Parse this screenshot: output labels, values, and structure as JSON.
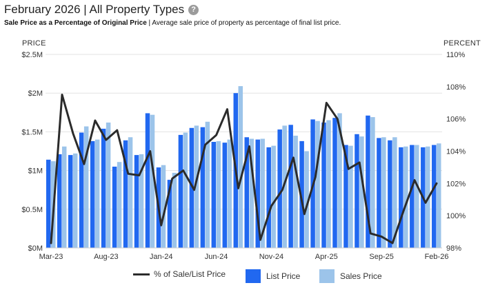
{
  "header": {
    "title": "February 2026 | All Property Types",
    "help_icon": "?",
    "subtitle_bold": "Sale Price as a Percentage of Original Price",
    "subtitle_rest": " | Average sale price of property as percentage of final list price."
  },
  "axes": {
    "left_title": "PRICE",
    "right_title": "PERCENT"
  },
  "legend": {
    "line_label": "% of Sale/List Price",
    "list_label": "List Price",
    "sales_label": "Sales Price"
  },
  "colors": {
    "list": "#2168f0",
    "sales": "#9cc4ea",
    "line": "#2b2b2b",
    "grid": "#e3e3e3"
  },
  "chart_data": {
    "type": "bar",
    "left_axis": {
      "ylim": [
        0,
        2.5
      ],
      "ticks": [
        "$0M",
        "$0.5M",
        "$1M",
        "$1.5M",
        "$2M",
        "$2.5M"
      ]
    },
    "right_axis": {
      "ylim": [
        98,
        110
      ],
      "ticks": [
        "98%",
        "100%",
        "102%",
        "104%",
        "106%",
        "108%",
        "110%"
      ]
    },
    "x_tick_labels": [
      {
        "index": 0,
        "label": "Mar-23"
      },
      {
        "index": 5,
        "label": "Aug-23"
      },
      {
        "index": 10,
        "label": "Jan-24"
      },
      {
        "index": 15,
        "label": "Jun-24"
      },
      {
        "index": 20,
        "label": "Nov-24"
      },
      {
        "index": 25,
        "label": "Apr-25"
      },
      {
        "index": 30,
        "label": "Sep-25"
      },
      {
        "index": 35,
        "label": "Feb-26"
      }
    ],
    "categories": [
      "Mar-23",
      "Apr-23",
      "May-23",
      "Jun-23",
      "Jul-23",
      "Aug-23",
      "Sep-23",
      "Oct-23",
      "Nov-23",
      "Dec-23",
      "Jan-24",
      "Feb-24",
      "Mar-24",
      "Apr-24",
      "May-24",
      "Jun-24",
      "Jul-24",
      "Aug-24",
      "Sep-24",
      "Oct-24",
      "Nov-24",
      "Dec-24",
      "Jan-25",
      "Feb-25",
      "Mar-25",
      "Apr-25",
      "May-25",
      "Jun-25",
      "Jul-25",
      "Aug-25",
      "Sep-25",
      "Oct-25",
      "Nov-25",
      "Dec-25",
      "Jan-26",
      "Feb-26"
    ],
    "series": [
      {
        "name": "List Price",
        "kind": "bar",
        "values": [
          1.14,
          1.21,
          1.2,
          1.49,
          1.38,
          1.54,
          1.05,
          1.39,
          1.2,
          1.74,
          1.04,
          0.88,
          1.46,
          1.55,
          1.56,
          1.37,
          1.36,
          2.0,
          1.43,
          1.4,
          1.3,
          1.53,
          1.59,
          1.38,
          1.66,
          1.62,
          1.68,
          1.33,
          1.47,
          1.71,
          1.42,
          1.39,
          1.3,
          1.33,
          1.3,
          1.33
        ]
      },
      {
        "name": "Sales Price",
        "kind": "bar",
        "values": [
          1.12,
          1.31,
          1.22,
          1.57,
          1.4,
          1.62,
          1.11,
          1.43,
          1.21,
          1.72,
          1.07,
          0.97,
          1.49,
          1.58,
          1.63,
          1.38,
          1.4,
          2.09,
          1.41,
          1.41,
          1.32,
          1.58,
          1.45,
          1.25,
          1.64,
          1.65,
          1.74,
          1.32,
          1.44,
          1.69,
          1.43,
          1.43,
          1.31,
          1.33,
          1.31,
          1.35
        ]
      },
      {
        "name": "% of Sale/List Price",
        "kind": "line",
        "values": [
          98.3,
          107.5,
          105.1,
          103.2,
          105.9,
          104.7,
          105.3,
          102.6,
          102.5,
          104.0,
          99.4,
          102.3,
          102.8,
          101.6,
          104.4,
          105.0,
          106.6,
          101.7,
          104.3,
          98.5,
          100.6,
          101.6,
          103.6,
          100.1,
          102.4,
          107.0,
          106.0,
          102.9,
          103.3,
          98.9,
          98.7,
          98.3,
          100.3,
          102.2,
          100.8,
          102.0
        ]
      }
    ]
  }
}
